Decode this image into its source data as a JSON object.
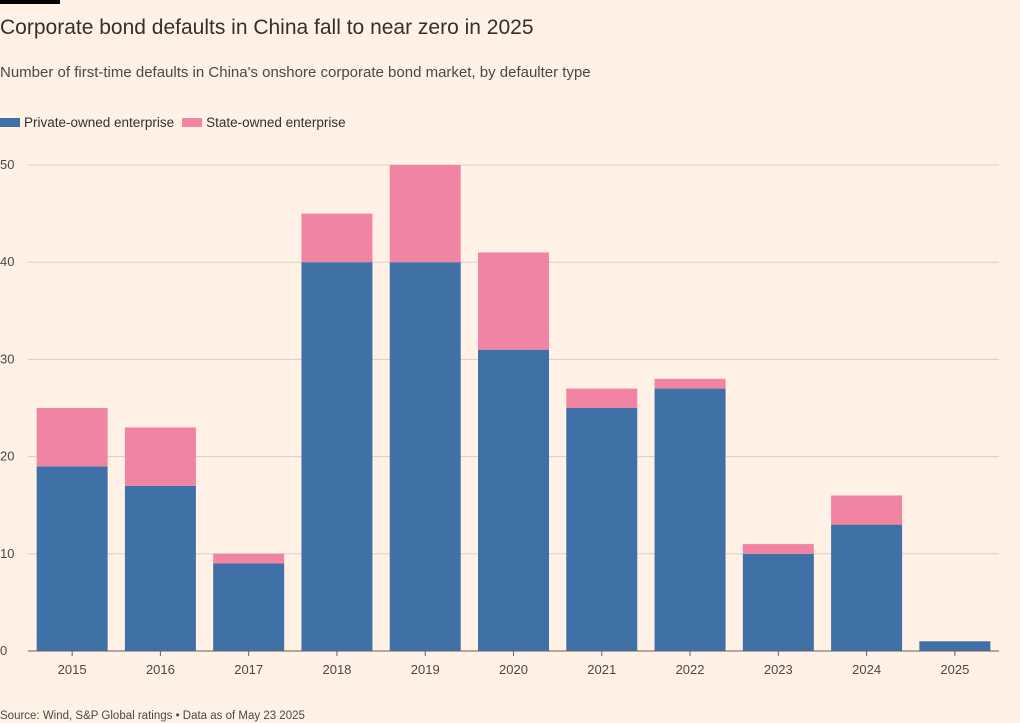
{
  "header": {
    "title": "Corporate bond defaults in China fall to near zero in 2025",
    "subtitle": "Number of first-time defaults in China's onshore corporate bond market, by defaulter type"
  },
  "footer": {
    "source": "Source: Wind, S&P Global ratings • Data as of May 23 2025"
  },
  "colors": {
    "background": "#FFF1E5",
    "private": "#3F71A6",
    "state": "#F284A3",
    "gridline": "#D7CFC7",
    "baseline": "#66605C"
  },
  "chart_data": {
    "type": "bar",
    "stacked": true,
    "title": "Corporate bond defaults in China fall to near zero in 2025",
    "subtitle": "Number of first-time defaults in China's onshore corporate bond market, by defaulter type",
    "categories": [
      "2015",
      "2016",
      "2017",
      "2018",
      "2019",
      "2020",
      "2021",
      "2022",
      "2023",
      "2024",
      "2025"
    ],
    "series": [
      {
        "name": "Private-owned enterprise",
        "color": "#3F71A6",
        "values": [
          19,
          17,
          9,
          40,
          40,
          31,
          25,
          27,
          10,
          13,
          1
        ]
      },
      {
        "name": "State-owned enterprise",
        "color": "#F284A3",
        "values": [
          6,
          6,
          1,
          5,
          10,
          10,
          2,
          1,
          1,
          3,
          0
        ]
      }
    ],
    "ylim": [
      0,
      50
    ],
    "yticks": [
      0,
      10,
      20,
      30,
      40,
      50
    ],
    "grid": true,
    "legend_position": "top-left",
    "xlabel": "",
    "ylabel": ""
  }
}
